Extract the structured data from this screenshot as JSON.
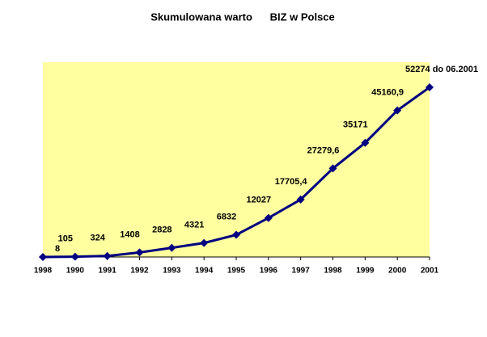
{
  "chart_data": {
    "type": "line",
    "title": "Skumulowana warto      BIZ w Polsce",
    "categories": [
      "1998",
      "1990",
      "1991",
      "1992",
      "1993",
      "1994",
      "1995",
      "1996",
      "1997",
      "1998",
      "1999",
      "2000",
      "2001"
    ],
    "series": [
      {
        "color": "#000080",
        "values": [
          8,
          105,
          324,
          1408,
          2828,
          4321,
          6832,
          12027,
          17705.4,
          27279.6,
          35171,
          45160.9,
          52274
        ],
        "value_labels": [
          "8",
          "105",
          "324",
          "1408",
          "2828",
          "4321",
          "6832",
          "12027",
          "17705,4",
          "27279,6",
          "35171",
          "45160,9",
          "52274 do 06.2001"
        ]
      }
    ],
    "ylim": [
      0,
      60000
    ],
    "plot_background": "#ffffa0"
  }
}
